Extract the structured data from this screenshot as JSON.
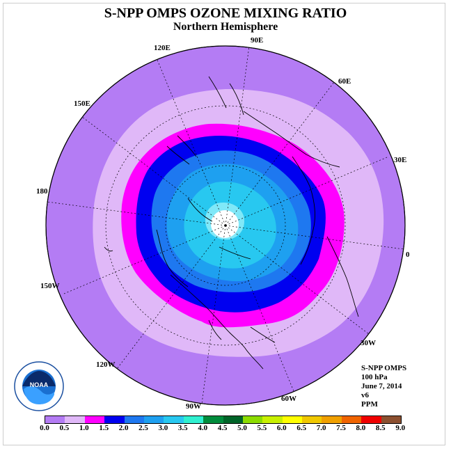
{
  "title": "S-NPP OMPS OZONE MIXING RATIO",
  "subtitle": "Northern Hemisphere",
  "info": {
    "instrument": "S-NPP OMPS",
    "level": "100 hPa",
    "date": "June 7, 2014",
    "version": "v6",
    "units": "PPM"
  },
  "logo": {
    "name": "NOAA",
    "ring_text": "NATIONAL OCEANIC AND ATMOSPHERIC ADMINISTRATION · U.S. DEPARTMENT OF COMMERCE"
  },
  "longitude_labels": [
    "90E",
    "60E",
    "30E",
    "0",
    "30W",
    "60W",
    "90W",
    "120W",
    "150W",
    "180",
    "150E",
    "120E"
  ],
  "colorbar": {
    "ticks": [
      "0.0",
      "0.5",
      "1.0",
      "1.5",
      "2.0",
      "2.5",
      "3.0",
      "3.5",
      "4.0",
      "4.5",
      "5.0",
      "5.5",
      "6.0",
      "6.5",
      "7.0",
      "7.5",
      "8.0",
      "8.5",
      "9.0"
    ],
    "colors": [
      "#b47cf4",
      "#e0b8f8",
      "#ff00ff",
      "#0000f0",
      "#1e78f0",
      "#1ea0f0",
      "#28c8f0",
      "#30f0d0",
      "#008c3c",
      "#006428",
      "#8cdc00",
      "#c8f000",
      "#ffff00",
      "#f0c800",
      "#f0a000",
      "#f06400",
      "#f00000",
      "#8c5030"
    ]
  },
  "map_data": {
    "projection": "north-polar-stereographic",
    "contour_levels_ppm": [
      0.5,
      1.0,
      1.5,
      2.0,
      2.5,
      3.0,
      3.5
    ],
    "outer_region_ppm": "0.0-0.5",
    "polar_no_data": true
  }
}
